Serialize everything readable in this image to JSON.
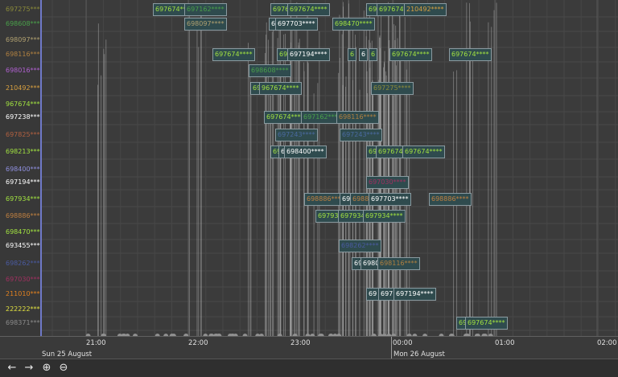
{
  "rows": [
    {
      "label": "697275****",
      "color": "#8b8b3a"
    },
    {
      "label": "698608****",
      "color": "#4aa04a"
    },
    {
      "label": "698097****",
      "color": "#b0a070"
    },
    {
      "label": "698116****",
      "color": "#b08040"
    },
    {
      "label": "698016****",
      "color": "#b060d0"
    },
    {
      "label": "210492****",
      "color": "#d8a040"
    },
    {
      "label": "967674****",
      "color": "#a0e040"
    },
    {
      "label": "697238****",
      "color": "#ffffff"
    },
    {
      "label": "697825****",
      "color": "#b06040"
    },
    {
      "label": "698213****",
      "color": "#a0e040"
    },
    {
      "label": "698400****",
      "color": "#9090e0"
    },
    {
      "label": "697194****",
      "color": "#ffffff"
    },
    {
      "label": "697934****",
      "color": "#a0e040"
    },
    {
      "label": "698886****",
      "color": "#c08040"
    },
    {
      "label": "698470****",
      "color": "#a0e040"
    },
    {
      "label": "693455****",
      "color": "#ffffff"
    },
    {
      "label": "698262****",
      "color": "#4a5aa0"
    },
    {
      "label": "697030****",
      "color": "#a03060"
    },
    {
      "label": "211010****",
      "color": "#e08020"
    },
    {
      "label": "222222****",
      "color": "#e0e040"
    },
    {
      "label": "698371****",
      "color": "#8a8a8a"
    }
  ],
  "tags": [
    {
      "text": "697674****",
      "color": "#a0e040"
    },
    {
      "text": "697162****",
      "color": "#4aa04a"
    },
    {
      "text": "6976****",
      "color": "#a0e040"
    },
    {
      "text": "697674****",
      "color": "#a0e040"
    },
    {
      "text": "698",
      "color": "#a0e040"
    },
    {
      "text": "697674****",
      "color": "#a0e040"
    },
    {
      "text": "210492****",
      "color": "#d8a040"
    },
    {
      "text": "698097****",
      "color": "#b0a070"
    },
    {
      "text": "6",
      "color": "#ffffff"
    },
    {
      "text": "697703****",
      "color": "#ffffff"
    },
    {
      "text": "698470****",
      "color": "#a0e040"
    },
    {
      "text": "697674****",
      "color": "#a0e040"
    },
    {
      "text": "69",
      "color": "#a0e040"
    },
    {
      "text": "697194****",
      "color": "#ffffff"
    },
    {
      "text": "6",
      "color": "#a0e040"
    },
    {
      "text": "6",
      "color": "#ffffff"
    },
    {
      "text": "6",
      "color": "#a0e040"
    },
    {
      "text": "697674****",
      "color": "#a0e040"
    },
    {
      "text": "697674****",
      "color": "#a0e040"
    },
    {
      "text": "698608****",
      "color": "#4aa04a"
    },
    {
      "text": "69",
      "color": "#a0e040"
    },
    {
      "text": "967674****",
      "color": "#a0e040"
    },
    {
      "text": "697275****",
      "color": "#8b8b3a"
    },
    {
      "text": "697674****",
      "color": "#a0e040"
    },
    {
      "text": "697162****",
      "color": "#4aa04a"
    },
    {
      "text": "698116****",
      "color": "#b08040"
    },
    {
      "text": "697243****",
      "color": "#4a6aa0"
    },
    {
      "text": "697243****",
      "color": "#4a6aa0"
    },
    {
      "text": "698",
      "color": "#a0e040"
    },
    {
      "text": "6",
      "color": "#ffffff"
    },
    {
      "text": "698400****",
      "color": "#ffffff"
    },
    {
      "text": "698",
      "color": "#a0e040"
    },
    {
      "text": "697674****",
      "color": "#a0e040"
    },
    {
      "text": "697674****",
      "color": "#a0e040"
    },
    {
      "text": "697030****",
      "color": "#a03060"
    },
    {
      "text": "698886****",
      "color": "#c08040"
    },
    {
      "text": "69",
      "color": "#ffffff"
    },
    {
      "text": "69888",
      "color": "#c08040"
    },
    {
      "text": "697703****",
      "color": "#ffffff"
    },
    {
      "text": "698886****",
      "color": "#c08040"
    },
    {
      "text": "697934****",
      "color": "#a0e040"
    },
    {
      "text": "697934****",
      "color": "#a0e040"
    },
    {
      "text": "697934****",
      "color": "#a0e040"
    },
    {
      "text": "698262****",
      "color": "#4a5aa0"
    },
    {
      "text": "69",
      "color": "#ffffff"
    },
    {
      "text": "6980",
      "color": "#ffffff"
    },
    {
      "text": "698116****",
      "color": "#b08040"
    },
    {
      "text": "69",
      "color": "#ffffff"
    },
    {
      "text": "697",
      "color": "#ffffff"
    },
    {
      "text": "697194****",
      "color": "#ffffff"
    },
    {
      "text": "69",
      "color": "#a0e040"
    },
    {
      "text": "697674****",
      "color": "#a0e040"
    }
  ],
  "axis": {
    "ticks": [
      "21:00",
      "22:00",
      "23:00",
      "00:00",
      "01:00",
      "02:00"
    ],
    "dates": [
      "Sun 25 August",
      "Mon 26 August"
    ]
  },
  "toolbar": {
    "back_label": "←",
    "forward_label": "→",
    "zoom_in_label": "⊕",
    "zoom_out_label": "⊖"
  }
}
